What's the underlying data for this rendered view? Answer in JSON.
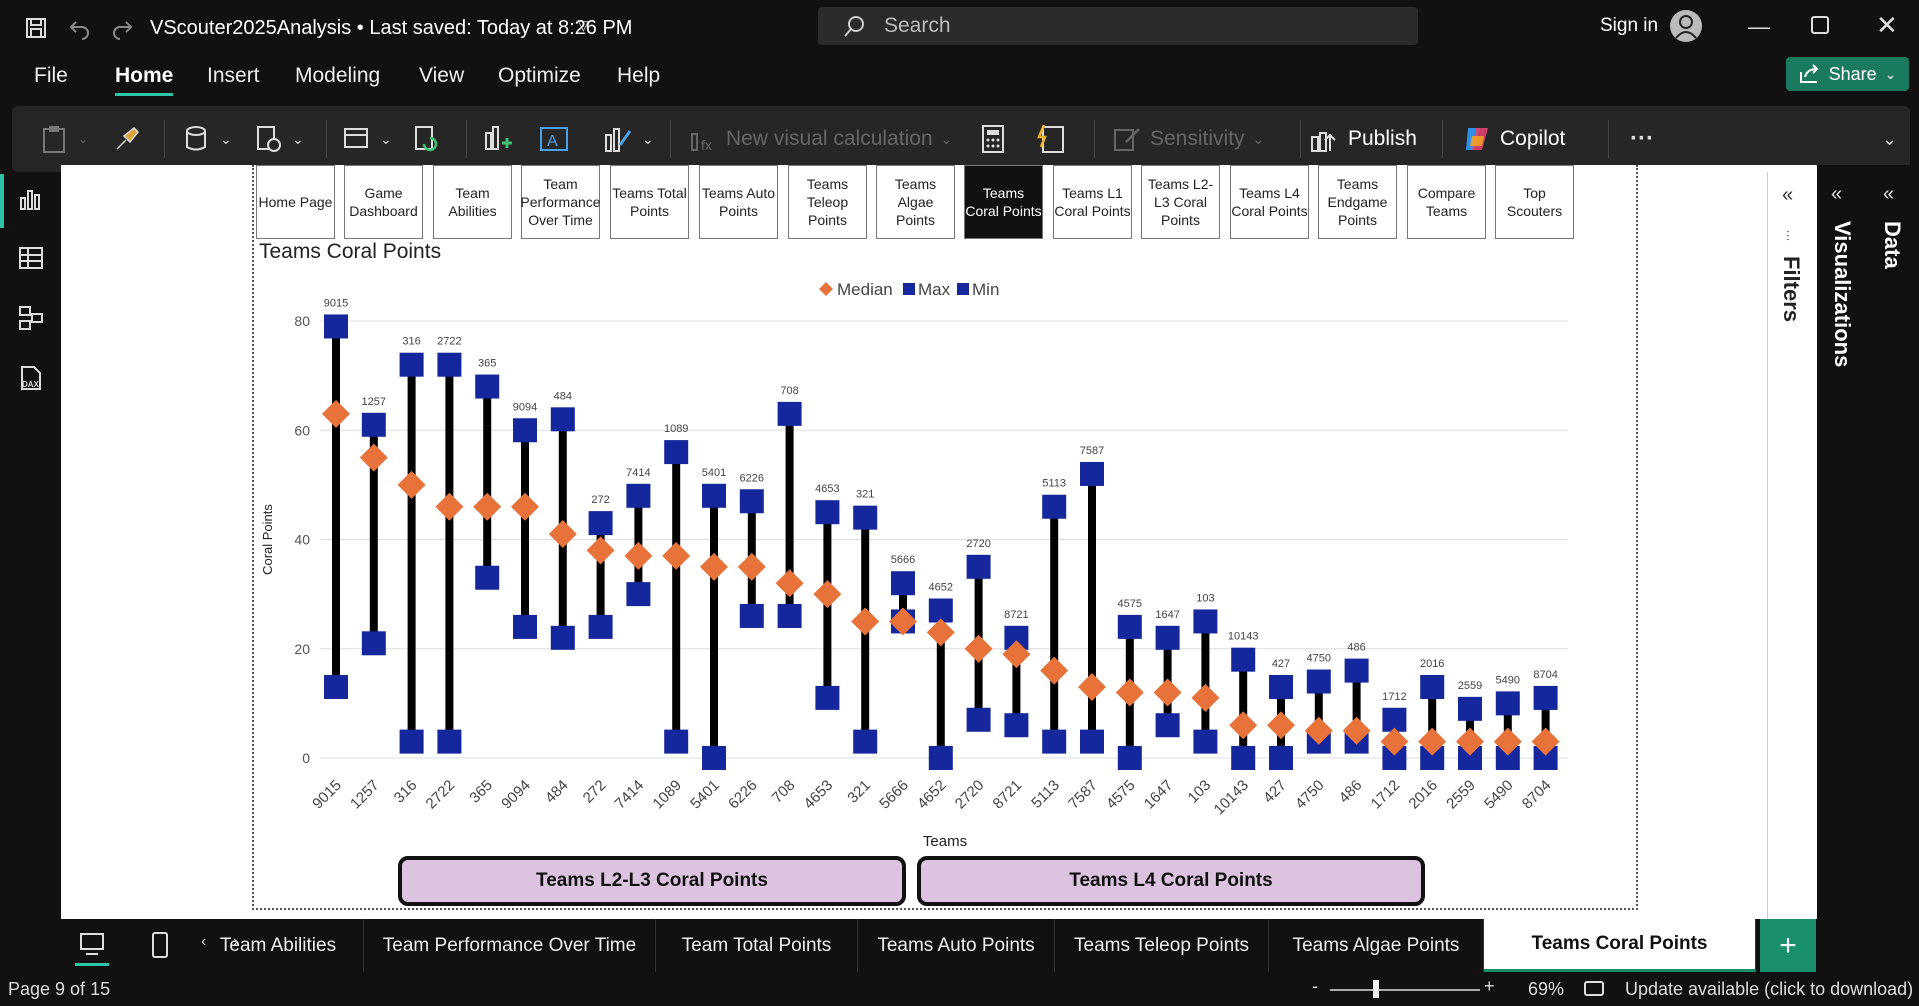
{
  "titlebar": {
    "doc_title": "VScouter2025Analysis • Last saved: Today at 8:26 PM",
    "search_placeholder": "Search",
    "signin": "Sign in"
  },
  "menu": [
    "File",
    "Home",
    "Insert",
    "Modeling",
    "View",
    "Optimize",
    "Help"
  ],
  "menu_active": "Home",
  "share_label": "Share",
  "ribbon": {
    "new_visual_calc": "New visual calculation",
    "sensitivity": "Sensitivity",
    "publish": "Publish",
    "copilot": "Copilot",
    "more": "···"
  },
  "nav_buttons": [
    "Home Page",
    "Game Dashboard",
    "Team Abilities",
    "Team Performance Over Time",
    "Teams Total Points",
    "Teams Auto Points",
    "Teams Teleop Points",
    "Teams Algae Points",
    "Teams Coral Points",
    "Teams L1 Coral Points",
    "Teams L2-L3 Coral Points",
    "Teams L4 Coral Points",
    "Teams Endgame Points",
    "Compare Teams",
    "Top Scouters"
  ],
  "nav_selected_index": 8,
  "bottom_buttons": [
    "Teams L2-L3 Coral Points",
    "Teams L4 Coral Points"
  ],
  "chart_data": {
    "type": "scatter",
    "title": "Teams Coral Points",
    "xlabel": "Teams",
    "ylabel": "Coral Points",
    "ylim": [
      0,
      80
    ],
    "yticks": [
      0,
      20,
      40,
      60,
      80
    ],
    "grid": true,
    "legend_position": "top",
    "legend": [
      "Median",
      "Max",
      "Min"
    ],
    "colors": {
      "median": "#E8733A",
      "max": "#14279C",
      "min": "#14279C",
      "range": "#000000"
    },
    "categories": [
      "9015",
      "1257",
      "316",
      "2722",
      "365",
      "9094",
      "484",
      "272",
      "7414",
      "1089",
      "5401",
      "6226",
      "708",
      "4653",
      "321",
      "5666",
      "4652",
      "2720",
      "8721",
      "5113",
      "7587",
      "4575",
      "1647",
      "103",
      "10143",
      "427",
      "4750",
      "486",
      "1712",
      "2016",
      "2559",
      "5490",
      "8704"
    ],
    "series": [
      {
        "name": "Median",
        "values": [
          63,
          55,
          50,
          46,
          46,
          46,
          41,
          38,
          37,
          37,
          35,
          35,
          32,
          30,
          25,
          25,
          23,
          20,
          19,
          16,
          13,
          12,
          12,
          11,
          6,
          6,
          5,
          5,
          3,
          3,
          3,
          3,
          3
        ]
      },
      {
        "name": "Max",
        "values": [
          79,
          61,
          72,
          72,
          68,
          60,
          62,
          43,
          48,
          56,
          48,
          47,
          63,
          45,
          44,
          32,
          27,
          35,
          22,
          46,
          52,
          24,
          22,
          25,
          18,
          13,
          14,
          16,
          7,
          13,
          9,
          10,
          11
        ]
      },
      {
        "name": "Min",
        "values": [
          13,
          21,
          3,
          3,
          33,
          24,
          22,
          24,
          30,
          3,
          0,
          26,
          26,
          11,
          3,
          25,
          0,
          7,
          6,
          3,
          3,
          0,
          6,
          3,
          0,
          0,
          3,
          3,
          0,
          0,
          0,
          0,
          0
        ]
      }
    ]
  },
  "side_panes": {
    "filters": "Filters",
    "visualizations": "Visualizations",
    "data": "Data"
  },
  "page_tabs": [
    "Team Abilities",
    "Team Performance Over Time",
    "Team Total Points",
    "Teams Auto Points",
    "Teams Teleop Points",
    "Teams Algae Points",
    "Teams Coral Points"
  ],
  "page_tab_active": "Teams Coral Points",
  "status": {
    "page": "Page 9 of 15",
    "zoom": "69%",
    "update": "Update available (click to download)"
  }
}
